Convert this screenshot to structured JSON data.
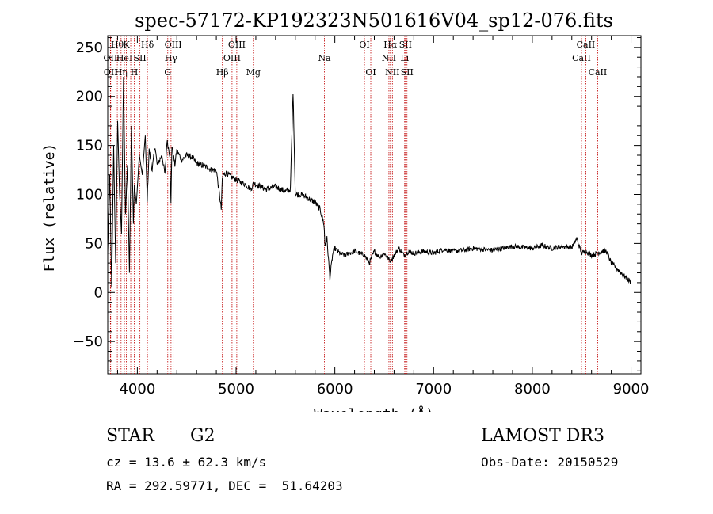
{
  "chart_data": {
    "type": "line",
    "title": "spec-57172-KP192323N501616V04_sp12-076.fits",
    "xlabel": "Wavelength (Å)",
    "ylabel": "Flux (relative)",
    "xlim": [
      3700,
      9100
    ],
    "ylim": [
      -83,
      262
    ],
    "xticks": [
      4000,
      5000,
      6000,
      7000,
      8000,
      9000
    ],
    "xtick_labels": [
      "4000",
      "5000",
      "6000",
      "7000",
      "8000",
      "9000"
    ],
    "yticks": [
      -50,
      0,
      50,
      100,
      150,
      200,
      250
    ],
    "ytick_labels": [
      "−50",
      "0",
      "50",
      "100",
      "150",
      "200",
      "250"
    ],
    "series": [
      {
        "name": "flux",
        "x": [
          3700,
          3720,
          3740,
          3760,
          3780,
          3800,
          3820,
          3840,
          3860,
          3880,
          3900,
          3920,
          3940,
          3960,
          3970,
          3990,
          4020,
          4050,
          4080,
          4100,
          4120,
          4150,
          4180,
          4200,
          4250,
          4280,
          4300,
          4330,
          4340,
          4350,
          4380,
          4400,
          4450,
          4500,
          4550,
          4600,
          4650,
          4700,
          4750,
          4800,
          4850,
          4860,
          4870,
          4900,
          4950,
          5000,
          5100,
          5150,
          5180,
          5200,
          5250,
          5300,
          5400,
          5500,
          5550,
          5577,
          5600,
          5650,
          5700,
          5750,
          5800,
          5850,
          5890,
          5900,
          5920,
          5950,
          5980,
          6000,
          6050,
          6100,
          6200,
          6300,
          6350,
          6400,
          6450,
          6500,
          6563,
          6600,
          6650,
          6700,
          6750,
          6800,
          6900,
          7000,
          7100,
          7200,
          7300,
          7400,
          7500,
          7600,
          7700,
          7800,
          7900,
          8000,
          8100,
          8200,
          8300,
          8400,
          8450,
          8498,
          8542,
          8600,
          8662,
          8700,
          8750,
          8800,
          8850,
          8900,
          8950,
          9000
        ],
        "y": [
          40,
          120,
          5,
          150,
          30,
          175,
          100,
          60,
          220,
          80,
          130,
          20,
          170,
          70,
          110,
          90,
          140,
          120,
          160,
          95,
          145,
          125,
          150,
          130,
          140,
          120,
          155,
          140,
          90,
          150,
          130,
          145,
          135,
          140,
          138,
          132,
          130,
          128,
          125,
          125,
          85,
          115,
          120,
          122,
          118,
          115,
          110,
          105,
          112,
          110,
          108,
          105,
          108,
          103,
          105,
          205,
          100,
          100,
          98,
          95,
          92,
          85,
          70,
          48,
          55,
          15,
          40,
          45,
          40,
          38,
          42,
          38,
          30,
          42,
          36,
          40,
          32,
          38,
          45,
          38,
          42,
          40,
          42,
          40,
          44,
          42,
          43,
          45,
          44,
          43,
          45,
          47,
          46,
          45,
          48,
          45,
          47,
          46,
          55,
          40,
          42,
          38,
          40,
          42,
          42,
          30,
          25,
          20,
          15,
          10
        ]
      }
    ],
    "line_labels": [
      {
        "wave": 3727,
        "label": "OII",
        "row": 1
      },
      {
        "wave": 3730,
        "label": "OII",
        "row": 2
      },
      {
        "wave": 3797,
        "label": "Hθ",
        "row": 0
      },
      {
        "wave": 3835,
        "label": "Hη",
        "row": 2
      },
      {
        "wave": 3869,
        "label": "HeI",
        "row": 1
      },
      {
        "wave": 3889,
        "label": "K",
        "row": 0
      },
      {
        "wave": 3933,
        "label": "",
        "row": 0
      },
      {
        "wave": 3969,
        "label": "H",
        "row": 2
      },
      {
        "wave": 4026,
        "label": "SII",
        "row": 1
      },
      {
        "wave": 4102,
        "label": "Hδ",
        "row": 0
      },
      {
        "wave": 4308,
        "label": "G",
        "row": 2
      },
      {
        "wave": 4341,
        "label": "Hγ",
        "row": 1
      },
      {
        "wave": 4363,
        "label": "OIII",
        "row": 0
      },
      {
        "wave": 4861,
        "label": "Hβ",
        "row": 2
      },
      {
        "wave": 4959,
        "label": "OIII",
        "row": 1
      },
      {
        "wave": 5007,
        "label": "OIII",
        "row": 0
      },
      {
        "wave": 5175,
        "label": "Mg",
        "row": 2
      },
      {
        "wave": 5894,
        "label": "Na",
        "row": 1
      },
      {
        "wave": 6300,
        "label": "OI",
        "row": 0
      },
      {
        "wave": 6364,
        "label": "OI",
        "row": 2
      },
      {
        "wave": 6548,
        "label": "NII",
        "row": 1
      },
      {
        "wave": 6563,
        "label": "Hα",
        "row": 0
      },
      {
        "wave": 6583,
        "label": "NII",
        "row": 2
      },
      {
        "wave": 6707,
        "label": "Li",
        "row": 1
      },
      {
        "wave": 6716,
        "label": "SII",
        "row": 0
      },
      {
        "wave": 6731,
        "label": "SII",
        "row": 2
      },
      {
        "wave": 8498,
        "label": "CaII",
        "row": 1
      },
      {
        "wave": 8542,
        "label": "CaII",
        "row": 0
      },
      {
        "wave": 8662,
        "label": "CaII",
        "row": 2
      }
    ]
  },
  "info": {
    "class_label": "STAR",
    "subclass": "G2",
    "survey": "LAMOST DR3",
    "redshift_text": "cz = 13.6 ± 62.3 km/s",
    "obs_date_text": "Obs-Date: 20150529",
    "coords_text": "RA = 292.59771, DEC =  51.64203"
  }
}
